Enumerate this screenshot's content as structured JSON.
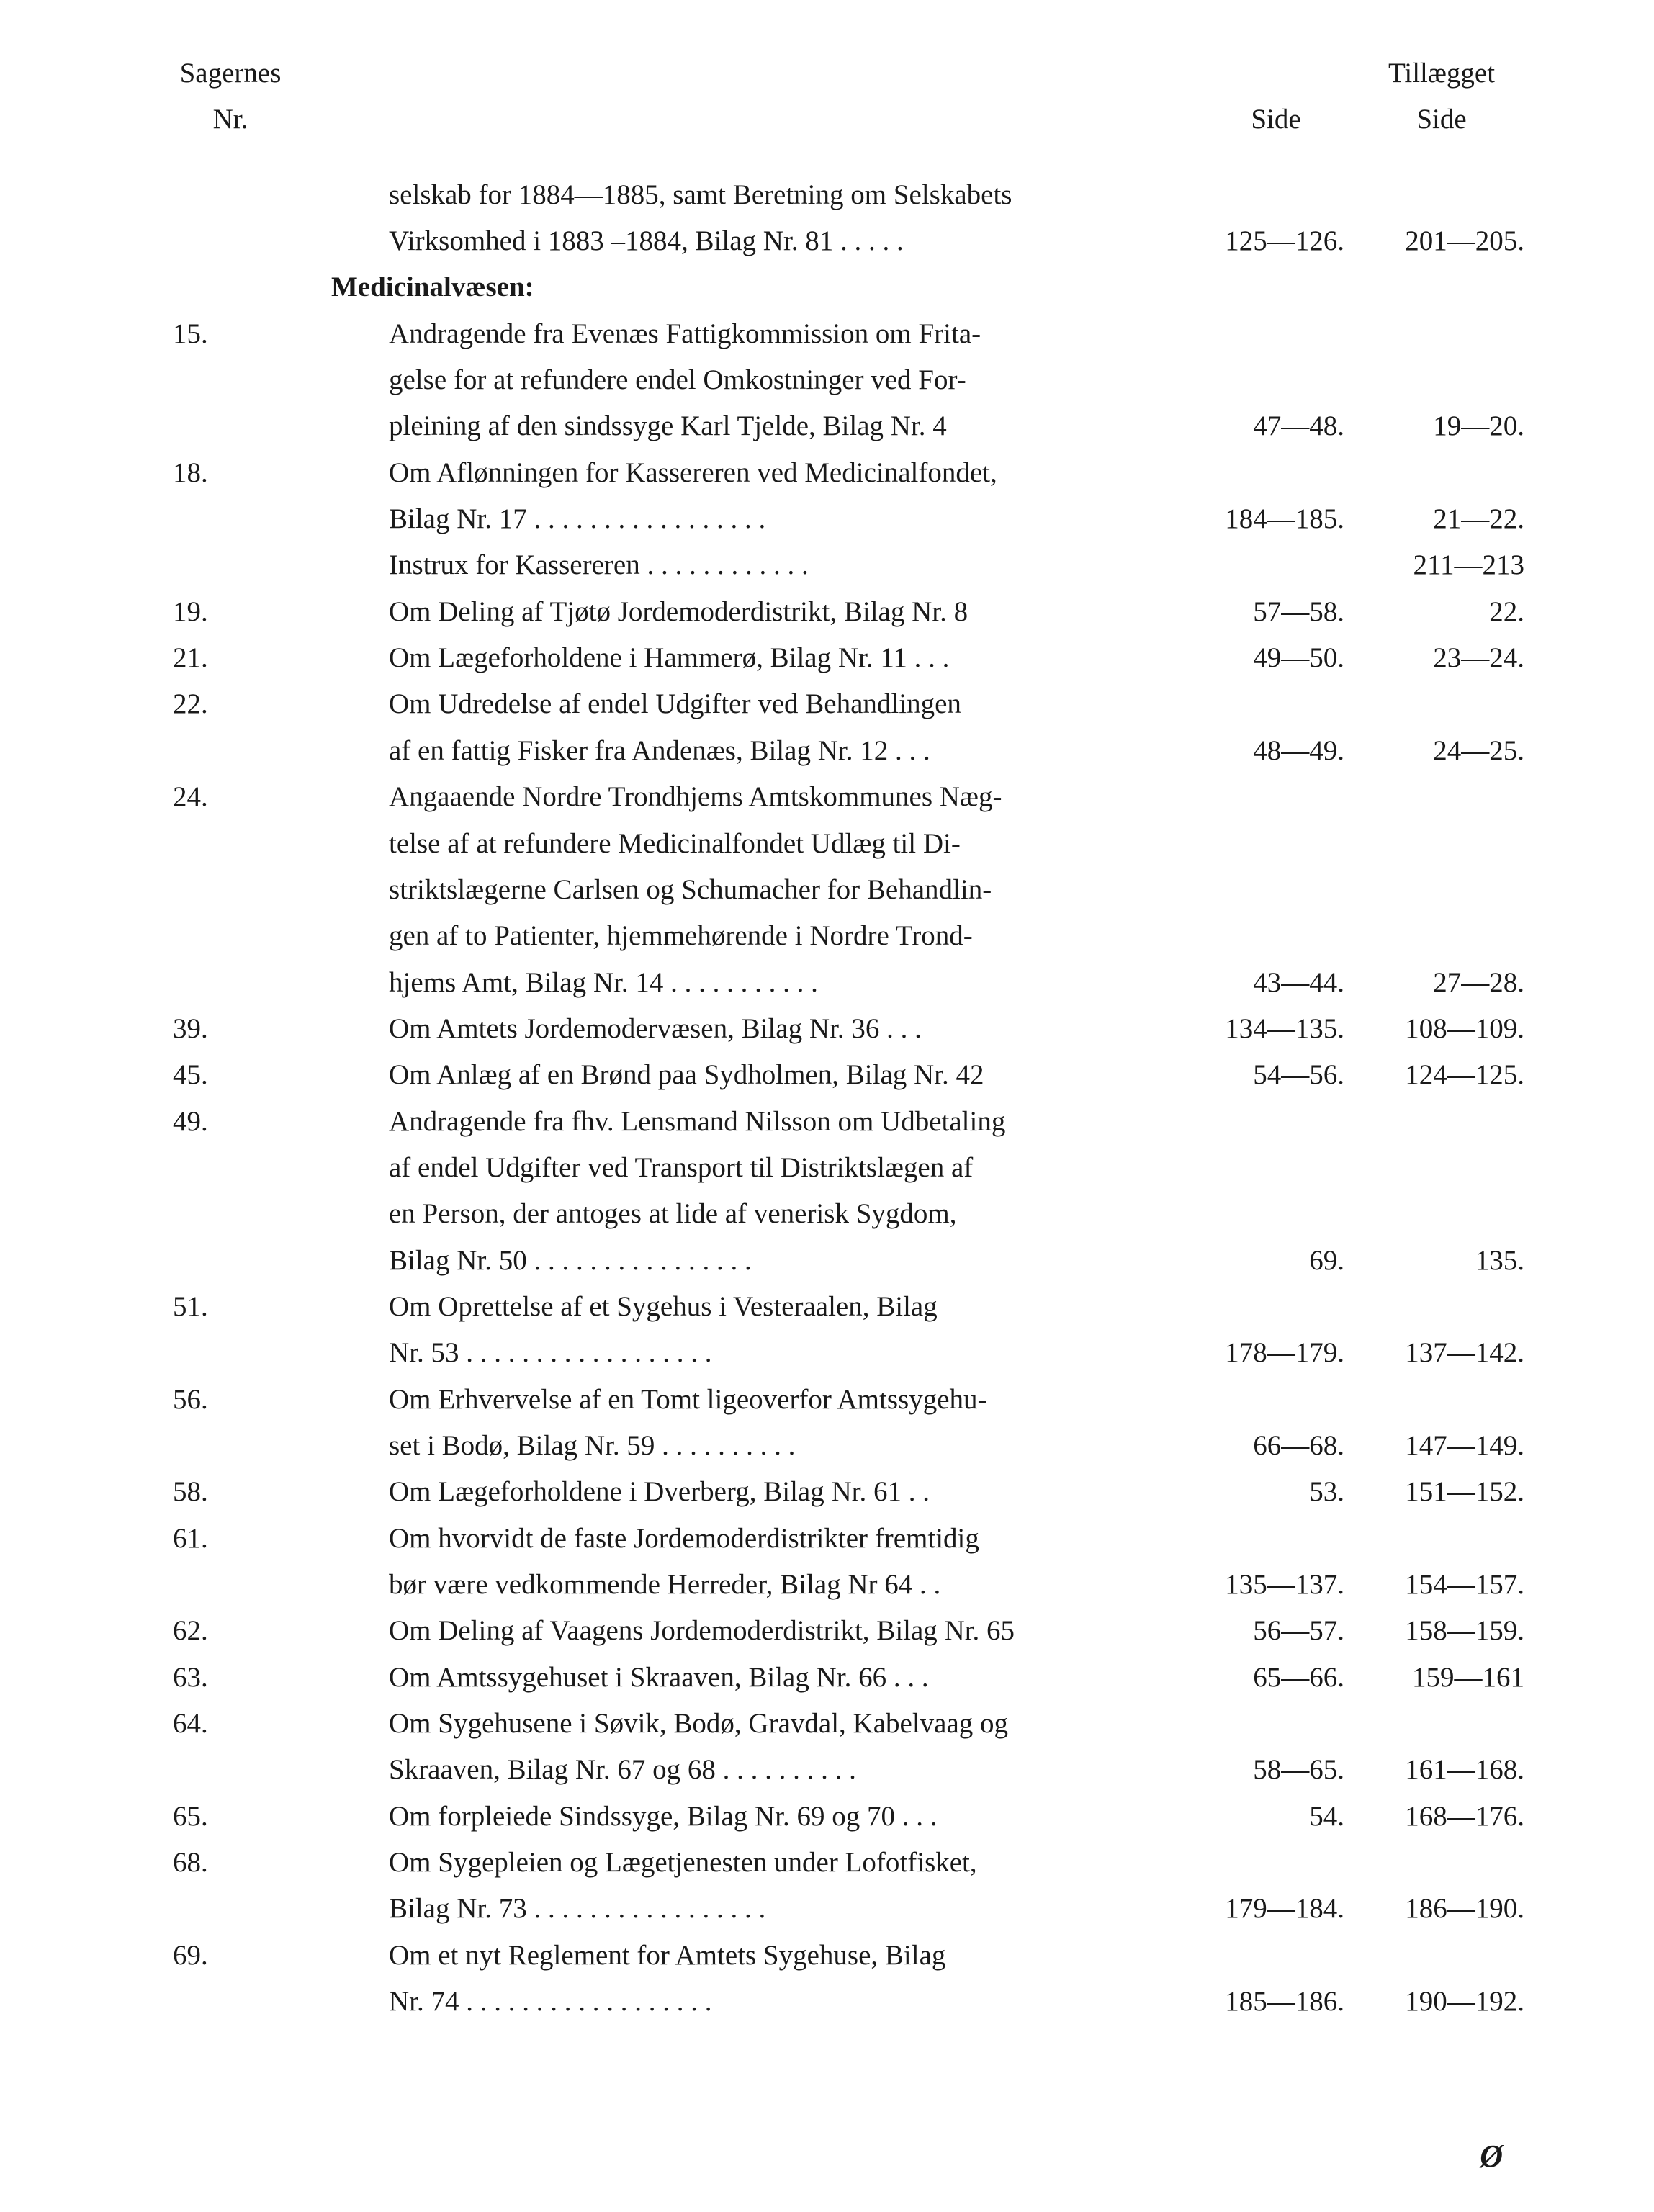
{
  "header": {
    "left_line1": "Sagernes",
    "left_line2": "Nr.",
    "side": "Side",
    "tillaeg_line1": "Tillægget",
    "tillaeg_line2": "Side"
  },
  "section_heading": "Medicinalvæsen:",
  "signature": "Ø",
  "entries": [
    {
      "nr": "",
      "lines": [
        {
          "text": "selskab for 1884—1885, samt Beretning om Selskabets",
          "side": "",
          "tillaeg": ""
        },
        {
          "text": "Virksomhed i 1883 –1884, Bilag Nr. 81",
          "dots": " .  .  .  .  .",
          "side": "125—126.",
          "tillaeg": "201—205."
        }
      ],
      "indent": true
    },
    {
      "section": true
    },
    {
      "nr": "15.",
      "lines": [
        {
          "text": "Andragende fra Evenæs Fattigkommission om Frita-",
          "side": "",
          "tillaeg": ""
        },
        {
          "text": "gelse for at refundere endel Omkostninger ved For-",
          "side": "",
          "tillaeg": ""
        },
        {
          "text": "pleining af den sindssyge Karl Tjelde, Bilag Nr. 4",
          "side": "47—48.",
          "tillaeg": "19—20."
        }
      ],
      "indent": true
    },
    {
      "nr": "18.",
      "lines": [
        {
          "text": "Om Aflønningen for Kassereren ved Medicinalfondet,",
          "side": "",
          "tillaeg": ""
        },
        {
          "text": "Bilag Nr. 17 .",
          "dots": "  .  .  .  .  .  .  .  .  .  .  .  .  .  .  .  .",
          "side": "184—185.",
          "tillaeg": "21—22."
        },
        {
          "text": "Instrux for Kassereren",
          "dots": "   .  .  .  .  .  .  .  .  .  .  .  .",
          "side": "",
          "tillaeg": "211—213"
        }
      ],
      "indent": true
    },
    {
      "nr": "19.",
      "lines": [
        {
          "text": "Om Deling af Tjøtø Jordemoderdistrikt, Bilag Nr. 8",
          "side": "57—58.",
          "tillaeg": "22."
        }
      ],
      "indent": true
    },
    {
      "nr": "21.",
      "lines": [
        {
          "text": "Om Lægeforholdene i Hammerø, Bilag Nr. 11",
          "dots": "  .  .  .",
          "side": "49—50.",
          "tillaeg": "23—24."
        }
      ],
      "indent": true
    },
    {
      "nr": "22.",
      "lines": [
        {
          "text": "Om Udredelse af endel Udgifter ved Behandlingen",
          "side": "",
          "tillaeg": ""
        },
        {
          "text": "af en fattig Fisker fra Andenæs, Bilag Nr. 12",
          "dots": "  .  .  .",
          "side": "48—49.",
          "tillaeg": "24—25."
        }
      ],
      "indent": true
    },
    {
      "nr": "24.",
      "lines": [
        {
          "text": "Angaaende Nordre Trondhjems Amtskommunes Næg-",
          "side": "",
          "tillaeg": ""
        },
        {
          "text": "telse af at refundere Medicinalfondet Udlæg til Di-",
          "side": "",
          "tillaeg": ""
        },
        {
          "text": "striktslægerne Carlsen og Schumacher for Behandlin-",
          "side": "",
          "tillaeg": ""
        },
        {
          "text": "gen af to Patienter, hjemmehørende i Nordre Trond-",
          "side": "",
          "tillaeg": ""
        },
        {
          "text": "hjems Amt, Bilag Nr. 14",
          "dots": "  .  .  .  .  .  .  .  .  .  .  .",
          "side": "43—44.",
          "tillaeg": "27—28."
        }
      ],
      "indent": true
    },
    {
      "nr": "39.",
      "lines": [
        {
          "text": "Om Amtets Jordemodervæsen, Bilag Nr. 36",
          "dots": "   .  .  .",
          "side": "134—135.",
          "tillaeg": "108—109."
        }
      ],
      "indent": true
    },
    {
      "nr": "45.",
      "lines": [
        {
          "text": "Om Anlæg af en Brønd paa Sydholmen, Bilag Nr. 42",
          "side": "54—56.",
          "tillaeg": "124—125."
        }
      ],
      "indent": true
    },
    {
      "nr": "49.",
      "lines": [
        {
          "text": "Andragende fra fhv. Lensmand Nilsson om Udbetaling",
          "side": "",
          "tillaeg": ""
        },
        {
          "text": "af endel Udgifter ved Transport til Distriktslægen af",
          "side": "",
          "tillaeg": ""
        },
        {
          "text": "en Person, der antoges at lide af venerisk Sygdom,",
          "side": "",
          "tillaeg": ""
        },
        {
          "text": "Bilag Nr. 50 .",
          "dots": "  .  .  .  .  .  .  .  .  .  .  .  .  .  .  .",
          "side": "69.",
          "tillaeg": "135."
        }
      ],
      "indent": true
    },
    {
      "nr": "51.",
      "lines": [
        {
          "text": "Om Oprettelse af et Sygehus i Vesteraalen, Bilag",
          "side": "",
          "tillaeg": ""
        },
        {
          "text": "Nr. 53",
          "dots": "   .  .  .  .  .  .  .  .  .  .  .  .  .  .  .  .  .  .",
          "side": "178—179.",
          "tillaeg": "137—142."
        }
      ],
      "indent": true
    },
    {
      "nr": "56.",
      "lines": [
        {
          "text": "Om Erhvervelse af en Tomt ligeoverfor Amtssygehu-",
          "side": "",
          "tillaeg": ""
        },
        {
          "text": "set i Bodø, Bilag Nr. 59",
          "dots": "  .  .  .  .  .  .  .  .  .  .",
          "side": "66—68.",
          "tillaeg": "147—149."
        }
      ],
      "indent": true
    },
    {
      "nr": "58.",
      "lines": [
        {
          "text": "Om Lægeforholdene i Dverberg, Bilag Nr. 61",
          "dots": "   .  .",
          "side": "53.",
          "tillaeg": "151—152."
        }
      ],
      "indent": true
    },
    {
      "nr": "61.",
      "lines": [
        {
          "text": "Om hvorvidt de faste Jordemoderdistrikter fremtidig",
          "side": "",
          "tillaeg": ""
        },
        {
          "text": "bør være vedkommende Herreder, Bilag Nr 64",
          "dots": "  .  .",
          "side": "135—137.",
          "tillaeg": "154—157."
        }
      ],
      "indent": true
    },
    {
      "nr": "62.",
      "lines": [
        {
          "text": "Om Deling af Vaagens Jordemoderdistrikt, Bilag Nr. 65",
          "side": "56—57.",
          "tillaeg": "158—159."
        }
      ],
      "indent": true
    },
    {
      "nr": "63.",
      "lines": [
        {
          "text": "Om Amtssygehuset i Skraaven, Bilag Nr. 66",
          "dots": "  .  .  .",
          "side": "65—66.",
          "tillaeg": "159—161"
        }
      ],
      "indent": true
    },
    {
      "nr": "64.",
      "lines": [
        {
          "text": "Om Sygehusene i Søvik, Bodø, Gravdal, Kabelvaag og",
          "side": "",
          "tillaeg": ""
        },
        {
          "text": "Skraaven, Bilag Nr. 67 og 68 .",
          "dots": "  .  .  .  .  .  .  .  .  .",
          "side": "58—65.",
          "tillaeg": "161—168."
        }
      ],
      "indent": true
    },
    {
      "nr": "65.",
      "lines": [
        {
          "text": "Om forpleiede Sindssyge, Bilag Nr. 69 og 70",
          "dots": "  .  .  .",
          "side": "54.",
          "tillaeg": "168—176."
        }
      ],
      "indent": true
    },
    {
      "nr": "68.",
      "lines": [
        {
          "text": "Om Sygepleien og Lægetjenesten under Lofotfisket,",
          "side": "",
          "tillaeg": ""
        },
        {
          "text": "Bilag Nr. 73 .",
          "dots": "  .  .  .  .  .  .  .  .  .  .  .  .  .  .  .  .",
          "side": "179—184.",
          "tillaeg": "186—190."
        }
      ],
      "indent": true
    },
    {
      "nr": "69.",
      "lines": [
        {
          "text": "Om et nyt Reglement for Amtets Sygehuse, Bilag",
          "side": "",
          "tillaeg": ""
        },
        {
          "text": "Nr. 74",
          "dots": "   .  .  .  .  .  .  .  .  .  .  .  .  .  .  .  .  .  .",
          "side": "185—186.",
          "tillaeg": "190—192."
        }
      ],
      "indent": true
    }
  ]
}
